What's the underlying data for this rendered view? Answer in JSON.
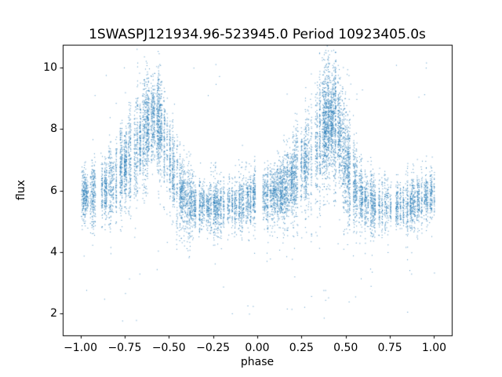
{
  "chart_data": {
    "type": "scatter",
    "title": "1SWASPJ121934.96-523945.0 Period 10923405.0s",
    "xlabel": "phase",
    "ylabel": "flux",
    "xlim": [
      -1.1,
      1.1
    ],
    "ylim": [
      1.27,
      10.73
    ],
    "grid": false,
    "legend": "none",
    "xticks": [
      {
        "v": -1.0,
        "label": "−1.00"
      },
      {
        "v": -0.75,
        "label": "−0.75"
      },
      {
        "v": -0.5,
        "label": "−0.50"
      },
      {
        "v": -0.25,
        "label": "−0.25"
      },
      {
        "v": 0.0,
        "label": "0.00"
      },
      {
        "v": 0.25,
        "label": "0.25"
      },
      {
        "v": 0.5,
        "label": "0.50"
      },
      {
        "v": 0.75,
        "label": "0.75"
      },
      {
        "v": 1.0,
        "label": "1.00"
      }
    ],
    "yticks": [
      {
        "v": 2,
        "label": "2"
      },
      {
        "v": 4,
        "label": "4"
      },
      {
        "v": 6,
        "label": "6"
      },
      {
        "v": 8,
        "label": "8"
      },
      {
        "v": 10,
        "label": "10"
      }
    ],
    "marker_color": "#1f77b4",
    "marker_alpha": 0.8,
    "marker_size_px": 1,
    "seed": 20,
    "x_data_range": [
      -1.0,
      1.0
    ],
    "stripe_spacing": 0.008,
    "stripe_presence": 0.72,
    "base_count": 26,
    "count_jitter": 52,
    "phase_jitter_sd": 0.002,
    "outlier_low_rate": 0.003,
    "outlier_low_range": [
      1.7,
      4.5
    ],
    "outlier_high_rate": 0.002,
    "outlier_high_range": [
      8.8,
      10.2
    ],
    "profile_phase": [
      0.0,
      0.05,
      0.1,
      0.15,
      0.2,
      0.25,
      0.3,
      0.35,
      0.4,
      0.45,
      0.5,
      0.55,
      0.6,
      0.65,
      0.7,
      0.75,
      0.8,
      0.85,
      0.9,
      0.95,
      1.0
    ],
    "profile_mean": [
      5.85,
      5.85,
      5.95,
      6.05,
      6.4,
      6.8,
      7.15,
      7.8,
      8.35,
      8.1,
      7.0,
      6.1,
      5.7,
      5.55,
      5.5,
      5.5,
      5.5,
      5.55,
      5.65,
      5.75,
      5.85
    ],
    "profile_sd": [
      0.42,
      0.45,
      0.5,
      0.55,
      0.7,
      0.8,
      0.82,
      0.9,
      0.85,
      0.92,
      1.0,
      0.7,
      0.55,
      0.48,
      0.45,
      0.45,
      0.45,
      0.45,
      0.45,
      0.43,
      0.42
    ]
  }
}
